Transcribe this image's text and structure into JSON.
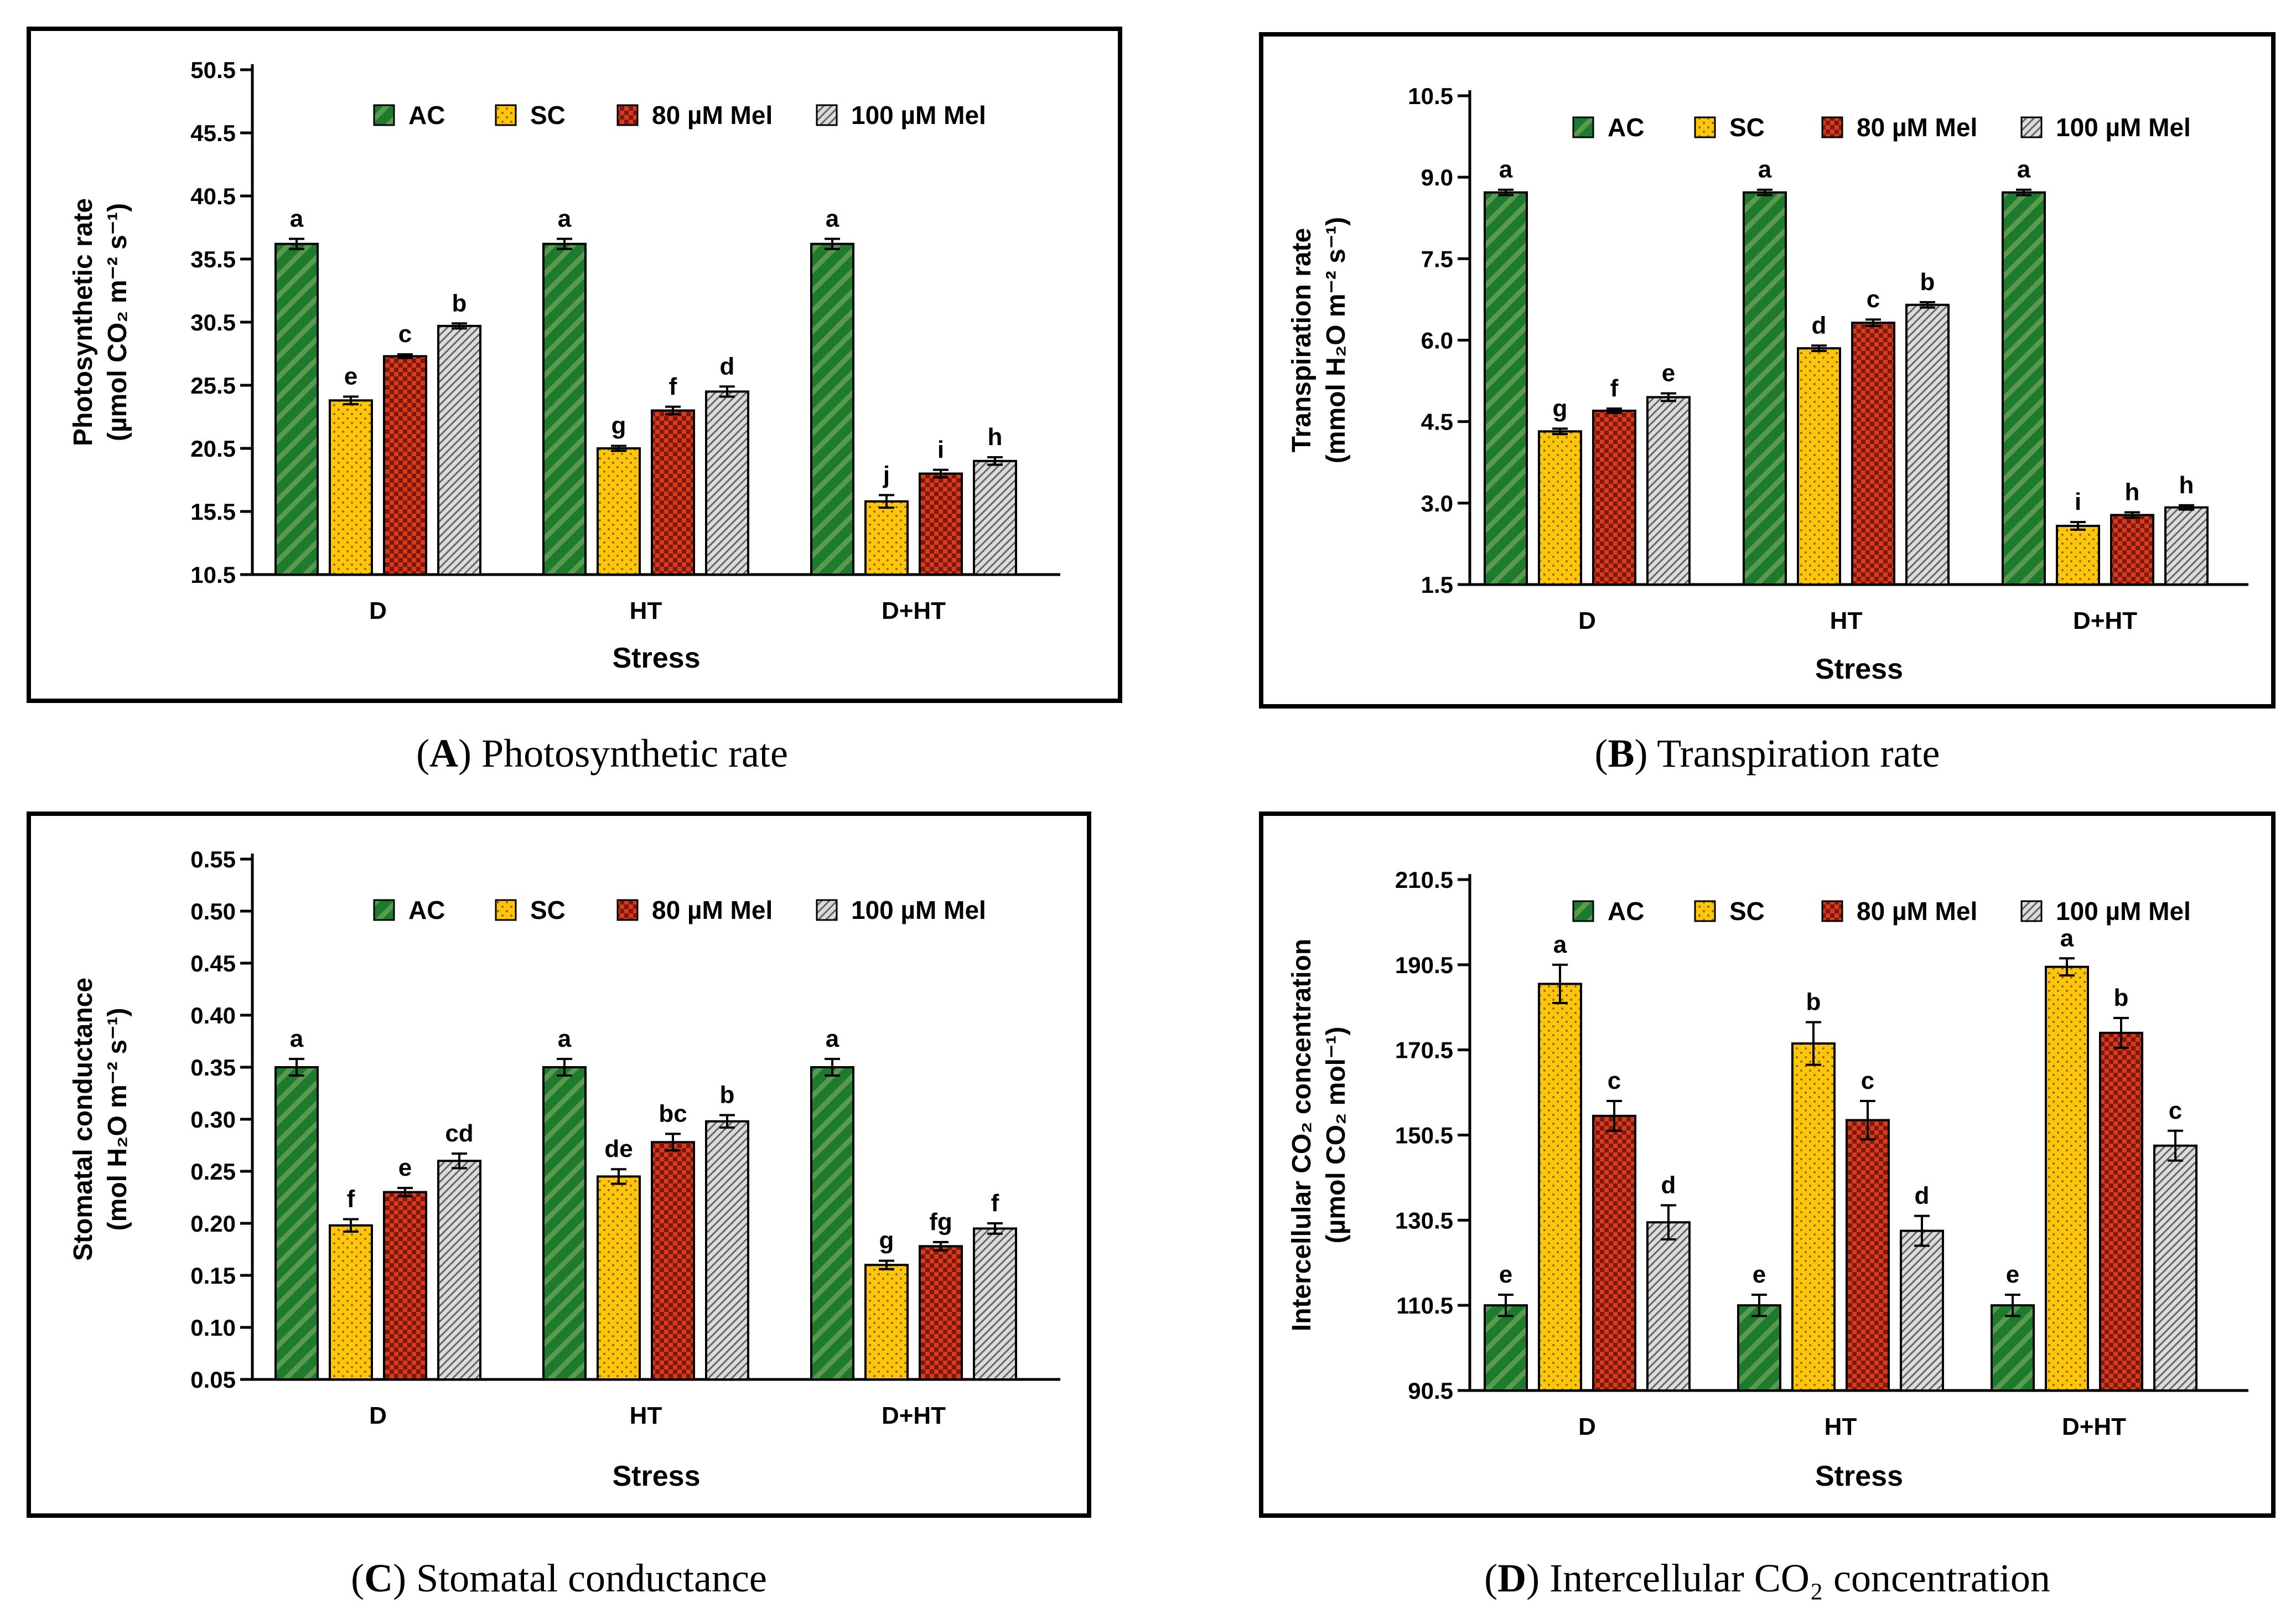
{
  "legend_labels": [
    "AC",
    "SC",
    "80 µM Mel",
    "100 µM Mel"
  ],
  "colors": {
    "AC": "#1e7b2e",
    "SC": "#ffc50a",
    "Mel80": "#d93a1e",
    "Mel100": "#dcdcdc"
  },
  "chart_data": [
    {
      "id": "A",
      "type": "bar",
      "caption_letter": "A",
      "caption_text": "Photosynthetic rate",
      "ylabel_line1": "Photosynthetic rate",
      "ylabel_line2": "(µmol CO₂ m⁻² s⁻¹)",
      "xlabel": "Stress",
      "categories": [
        "D",
        "HT",
        "D+HT"
      ],
      "ylim": [
        10.5,
        50.5
      ],
      "yticks": [
        "10.5",
        "15.5",
        "20.5",
        "25.5",
        "30.5",
        "35.5",
        "40.5",
        "45.5",
        "50.5"
      ],
      "series": [
        {
          "name": "AC",
          "values": [
            36.7,
            36.7,
            36.7
          ],
          "errors": [
            0.4,
            0.4,
            0.4
          ],
          "letters": [
            "a",
            "a",
            "a"
          ]
        },
        {
          "name": "SC",
          "values": [
            24.3,
            20.5,
            16.3
          ],
          "errors": [
            0.3,
            0.2,
            0.5
          ],
          "letters": [
            "e",
            "g",
            "j"
          ]
        },
        {
          "name": "80 µM Mel",
          "values": [
            27.8,
            23.5,
            18.5
          ],
          "errors": [
            0.15,
            0.3,
            0.3
          ],
          "letters": [
            "c",
            "f",
            "i"
          ]
        },
        {
          "name": "100 µM Mel",
          "values": [
            30.2,
            25.0,
            19.5
          ],
          "errors": [
            0.2,
            0.4,
            0.3
          ],
          "letters": [
            "b",
            "d",
            "h"
          ]
        }
      ]
    },
    {
      "id": "B",
      "type": "bar",
      "caption_letter": "B",
      "caption_text": "Transpiration rate",
      "ylabel_line1": "Transpiration rate",
      "ylabel_line2": "(mmol H₂O m⁻² s⁻¹)",
      "xlabel": "Stress",
      "categories": [
        "D",
        "HT",
        "D+HT"
      ],
      "ylim": [
        1.5,
        10.5
      ],
      "yticks": [
        "1.5",
        "3.0",
        "4.5",
        "6.0",
        "7.5",
        "9.0",
        "10.5"
      ],
      "series": [
        {
          "name": "AC",
          "values": [
            8.72,
            8.72,
            8.72
          ],
          "errors": [
            0.05,
            0.05,
            0.05
          ],
          "letters": [
            "a",
            "a",
            "a"
          ]
        },
        {
          "name": "SC",
          "values": [
            4.32,
            5.85,
            2.58
          ],
          "errors": [
            0.05,
            0.05,
            0.07
          ],
          "letters": [
            "g",
            "d",
            "i"
          ]
        },
        {
          "name": "80 µM Mel",
          "values": [
            4.7,
            6.32,
            2.78
          ],
          "errors": [
            0.04,
            0.06,
            0.05
          ],
          "letters": [
            "f",
            "c",
            "h"
          ]
        },
        {
          "name": "100 µM Mel",
          "values": [
            4.95,
            6.65,
            2.92
          ],
          "errors": [
            0.07,
            0.05,
            0.04
          ],
          "letters": [
            "e",
            "b",
            "h"
          ]
        }
      ]
    },
    {
      "id": "C",
      "type": "bar",
      "caption_letter": "C",
      "caption_text": "Stomatal conductance",
      "ylabel_line1": "Stomatal conductance",
      "ylabel_line2": "(mol H₂O m⁻² s⁻¹)",
      "xlabel": "Stress",
      "categories": [
        "D",
        "HT",
        "D+HT"
      ],
      "ylim": [
        0.05,
        0.55
      ],
      "yticks": [
        "0.05",
        "0.10",
        "0.15",
        "0.20",
        "0.25",
        "0.30",
        "0.35",
        "0.40",
        "0.45",
        "0.50",
        "0.55"
      ],
      "series": [
        {
          "name": "AC",
          "values": [
            0.35,
            0.35,
            0.35
          ],
          "errors": [
            0.008,
            0.008,
            0.008
          ],
          "letters": [
            "a",
            "a",
            "a"
          ]
        },
        {
          "name": "SC",
          "values": [
            0.198,
            0.245,
            0.16
          ],
          "errors": [
            0.006,
            0.007,
            0.004
          ],
          "letters": [
            "f",
            "de",
            "g"
          ]
        },
        {
          "name": "80 µM Mel",
          "values": [
            0.23,
            0.278,
            0.178
          ],
          "errors": [
            0.004,
            0.008,
            0.004
          ],
          "letters": [
            "e",
            "bc",
            "fg"
          ]
        },
        {
          "name": "100 µM Mel",
          "values": [
            0.26,
            0.298,
            0.195
          ],
          "errors": [
            0.007,
            0.006,
            0.005
          ],
          "letters": [
            "cd",
            "b",
            "f"
          ]
        }
      ]
    },
    {
      "id": "D",
      "type": "bar",
      "caption_letter": "D",
      "caption_text": "Intercellular CO₂ concentration",
      "ylabel_line1": "Intercellular CO₂ concentration",
      "ylabel_line2": "(µmol CO₂ mol⁻¹)",
      "xlabel": "Stress",
      "categories": [
        "D",
        "HT",
        "D+HT"
      ],
      "ylim": [
        90.5,
        210.5
      ],
      "yticks": [
        "90.5",
        "110.5",
        "130.5",
        "150.5",
        "170.5",
        "190.5",
        "210.5"
      ],
      "series": [
        {
          "name": "AC",
          "values": [
            110.5,
            110.5,
            110.5
          ],
          "errors": [
            2.5,
            2.5,
            2.5
          ],
          "letters": [
            "e",
            "e",
            "e"
          ]
        },
        {
          "name": "SC",
          "values": [
            186.0,
            172.0,
            190.0
          ],
          "errors": [
            4.5,
            5.0,
            2.0
          ],
          "letters": [
            "a",
            "b",
            "a"
          ]
        },
        {
          "name": "80 µM Mel",
          "values": [
            155.0,
            154.0,
            174.5
          ],
          "errors": [
            3.5,
            4.5,
            3.5
          ],
          "letters": [
            "c",
            "c",
            "b"
          ]
        },
        {
          "name": "100 µM Mel",
          "values": [
            130.0,
            128.0,
            148.0
          ],
          "errors": [
            4.0,
            3.5,
            3.5
          ],
          "letters": [
            "d",
            "d",
            "c"
          ]
        }
      ]
    }
  ]
}
